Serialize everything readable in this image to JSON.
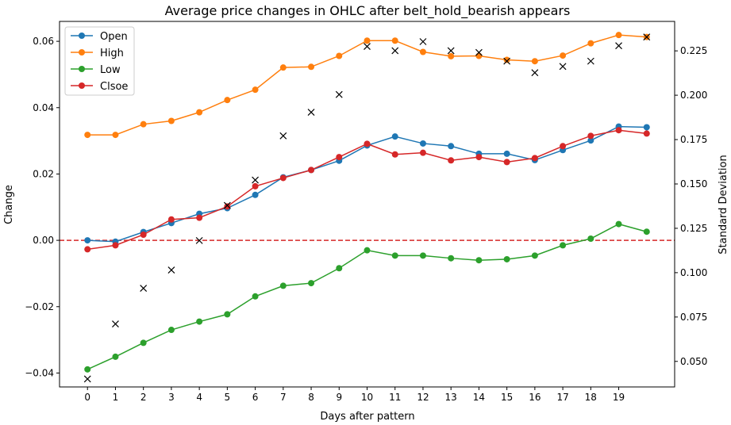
{
  "chart_data": {
    "type": "line",
    "title": "Average price changes in OHLC after belt_hold_bearish appears",
    "xlabel": "Days after pattern",
    "ylabel": "Change",
    "y2label": "Standard Deviation",
    "x": [
      0,
      1,
      2,
      3,
      4,
      5,
      6,
      7,
      8,
      9,
      10,
      11,
      12,
      13,
      14,
      15,
      16,
      17,
      18,
      19,
      20
    ],
    "xticks": [
      0,
      1,
      2,
      3,
      4,
      5,
      6,
      7,
      8,
      9,
      10,
      11,
      12,
      13,
      14,
      15,
      16,
      17,
      18,
      19
    ],
    "xlim": [
      -1,
      21
    ],
    "ylim": [
      -0.0442,
      0.066
    ],
    "yticks": [
      -0.04,
      -0.02,
      0.0,
      0.02,
      0.04,
      0.06
    ],
    "yticklabels": [
      "−0.04",
      "−0.02",
      "0.00",
      "0.02",
      "0.04",
      "0.06"
    ],
    "y2lim": [
      0.0356,
      0.2416
    ],
    "y2ticks": [
      0.05,
      0.075,
      0.1,
      0.125,
      0.15,
      0.175,
      0.2,
      0.225
    ],
    "y2ticklabels": [
      "0.050",
      "0.075",
      "0.100",
      "0.125",
      "0.150",
      "0.175",
      "0.200",
      "0.225"
    ],
    "zero_line": {
      "y": 0.0,
      "color": "#d62728",
      "style": "dashed"
    },
    "legend_position": "top-left",
    "series": [
      {
        "name": "Open",
        "color": "#1f77b4",
        "values": [
          0.0,
          -0.0004,
          0.0025,
          0.0052,
          0.008,
          0.0097,
          0.0137,
          0.019,
          0.0212,
          0.024,
          0.0286,
          0.0313,
          0.0292,
          0.0284,
          0.0261,
          0.0261,
          0.0242,
          0.0272,
          0.0301,
          0.0343,
          0.0341
        ]
      },
      {
        "name": "High",
        "color": "#ff7f0e",
        "values": [
          0.0318,
          0.0318,
          0.035,
          0.036,
          0.0386,
          0.0423,
          0.0454,
          0.0521,
          0.0523,
          0.0556,
          0.0602,
          0.0602,
          0.0568,
          0.0555,
          0.0556,
          0.0544,
          0.054,
          0.0557,
          0.0594,
          0.0619,
          0.0613
        ]
      },
      {
        "name": "Low",
        "color": "#2ca02c",
        "values": [
          -0.0389,
          -0.0351,
          -0.0309,
          -0.027,
          -0.0245,
          -0.0223,
          -0.0169,
          -0.0137,
          -0.0129,
          -0.0084,
          -0.003,
          -0.0046,
          -0.0046,
          -0.0054,
          -0.006,
          -0.0057,
          -0.0046,
          -0.0015,
          0.0005,
          0.0049,
          0.0026
        ]
      },
      {
        "name": "Clsoe",
        "color": "#d62728",
        "values": [
          -0.0027,
          -0.0015,
          0.0017,
          0.0063,
          0.0068,
          0.0102,
          0.0163,
          0.0188,
          0.0212,
          0.0251,
          0.0291,
          0.0259,
          0.0264,
          0.0241,
          0.0251,
          0.0236,
          0.0248,
          0.0284,
          0.0315,
          0.0332,
          0.0322
        ]
      }
    ],
    "std_dev": {
      "marker": "x",
      "color": "#000000",
      "axis": "right",
      "values": [
        0.0401,
        0.0711,
        0.0912,
        0.1015,
        0.1181,
        0.1379,
        0.1522,
        0.1771,
        0.1904,
        0.2004,
        0.2275,
        0.2251,
        0.2302,
        0.2251,
        0.2241,
        0.2192,
        0.2127,
        0.2162,
        0.2192,
        0.2279,
        0.2328
      ]
    }
  }
}
